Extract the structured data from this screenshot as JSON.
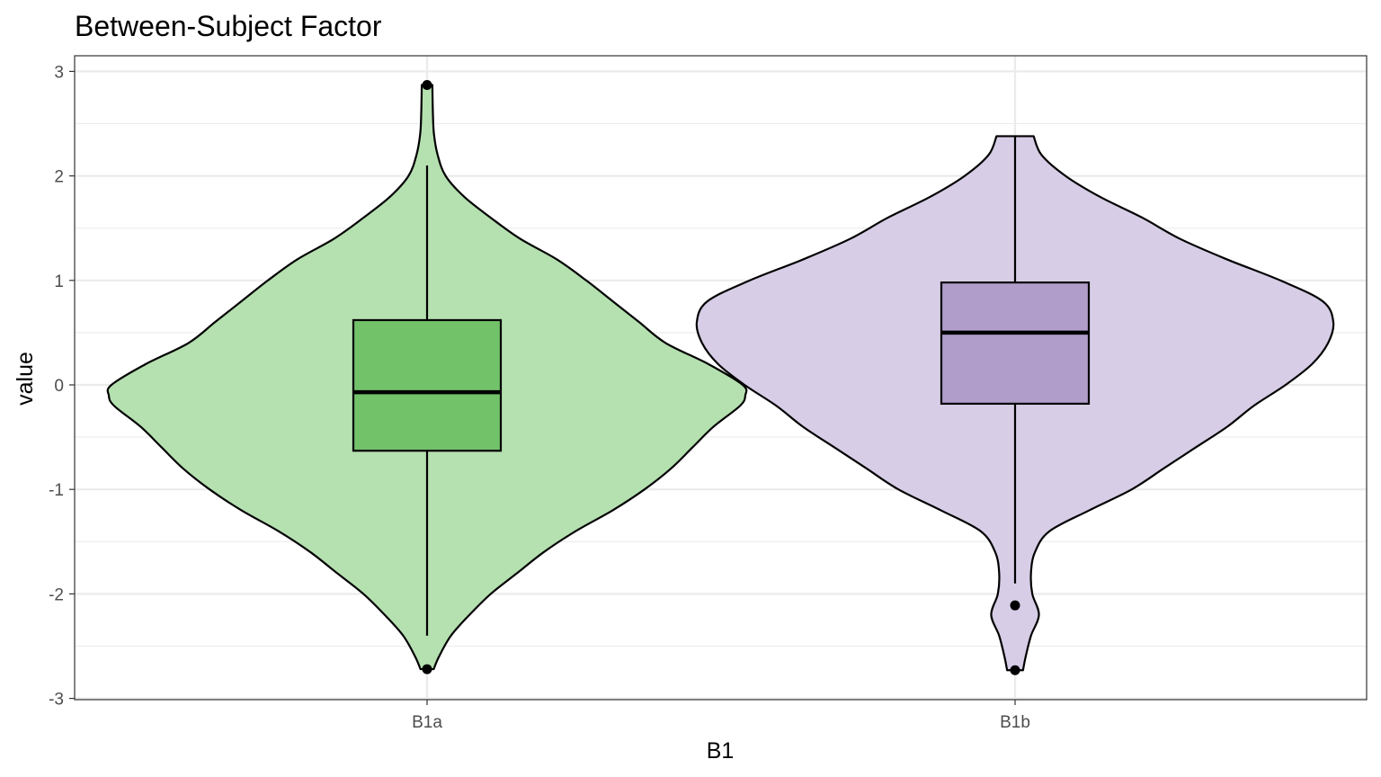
{
  "chart_data": {
    "type": "violin",
    "title": "Between-Subject Factor",
    "xlabel": "B1",
    "ylabel": "value",
    "ylim": [
      -3,
      3
    ],
    "yticks": [
      "-3",
      "-2",
      "-1",
      "0",
      "1",
      "2",
      "3"
    ],
    "categories": [
      "B1a",
      "B1b"
    ],
    "grid": true,
    "legend": "none",
    "groups": [
      {
        "category": "B1a",
        "violin_color": "#b5e0b0",
        "box_color": "#72c26a",
        "min": -2.72,
        "max": 2.87,
        "box": {
          "q1": -0.63,
          "median": -0.07,
          "q3": 0.62,
          "whisker_low": -2.4,
          "whisker_high": 2.1
        },
        "outliers": [
          2.87,
          -2.72
        ],
        "density": [
          [
            -2.72,
            0.025
          ],
          [
            -2.6,
            0.045
          ],
          [
            -2.4,
            0.09
          ],
          [
            -2.2,
            0.16
          ],
          [
            -2.0,
            0.24
          ],
          [
            -1.8,
            0.34
          ],
          [
            -1.6,
            0.44
          ],
          [
            -1.4,
            0.56
          ],
          [
            -1.2,
            0.7
          ],
          [
            -1.0,
            0.82
          ],
          [
            -0.8,
            0.92
          ],
          [
            -0.6,
            1.0
          ],
          [
            -0.4,
            1.08
          ],
          [
            -0.2,
            1.18
          ],
          [
            -0.1,
            1.2
          ],
          [
            0.0,
            1.19
          ],
          [
            0.2,
            1.06
          ],
          [
            0.4,
            0.9
          ],
          [
            0.6,
            0.8
          ],
          [
            0.8,
            0.7
          ],
          [
            1.0,
            0.6
          ],
          [
            1.2,
            0.49
          ],
          [
            1.4,
            0.35
          ],
          [
            1.6,
            0.24
          ],
          [
            1.8,
            0.14
          ],
          [
            2.0,
            0.07
          ],
          [
            2.2,
            0.04
          ],
          [
            2.4,
            0.026
          ],
          [
            2.6,
            0.022
          ],
          [
            2.87,
            0.02
          ]
        ]
      },
      {
        "category": "B1b",
        "violin_color": "#d7cde6",
        "box_color": "#b19dca",
        "min": -2.73,
        "max": 2.38,
        "box": {
          "q1": -0.18,
          "median": 0.5,
          "q3": 0.98,
          "whisker_low": -1.9,
          "whisker_high": 2.38
        },
        "outliers": [
          -2.11,
          -2.73
        ],
        "density": [
          [
            -2.73,
            0.03
          ],
          [
            -2.6,
            0.04
          ],
          [
            -2.4,
            0.06
          ],
          [
            -2.2,
            0.09
          ],
          [
            -2.0,
            0.065
          ],
          [
            -1.8,
            0.06
          ],
          [
            -1.6,
            0.075
          ],
          [
            -1.4,
            0.13
          ],
          [
            -1.2,
            0.28
          ],
          [
            -1.0,
            0.44
          ],
          [
            -0.8,
            0.56
          ],
          [
            -0.6,
            0.68
          ],
          [
            -0.4,
            0.8
          ],
          [
            -0.2,
            0.9
          ],
          [
            0.0,
            1.02
          ],
          [
            0.2,
            1.12
          ],
          [
            0.4,
            1.18
          ],
          [
            0.6,
            1.2
          ],
          [
            0.8,
            1.16
          ],
          [
            1.0,
            1.0
          ],
          [
            1.2,
            0.8
          ],
          [
            1.4,
            0.62
          ],
          [
            1.6,
            0.48
          ],
          [
            1.8,
            0.32
          ],
          [
            2.0,
            0.19
          ],
          [
            2.2,
            0.1
          ],
          [
            2.38,
            0.07
          ]
        ]
      }
    ]
  }
}
